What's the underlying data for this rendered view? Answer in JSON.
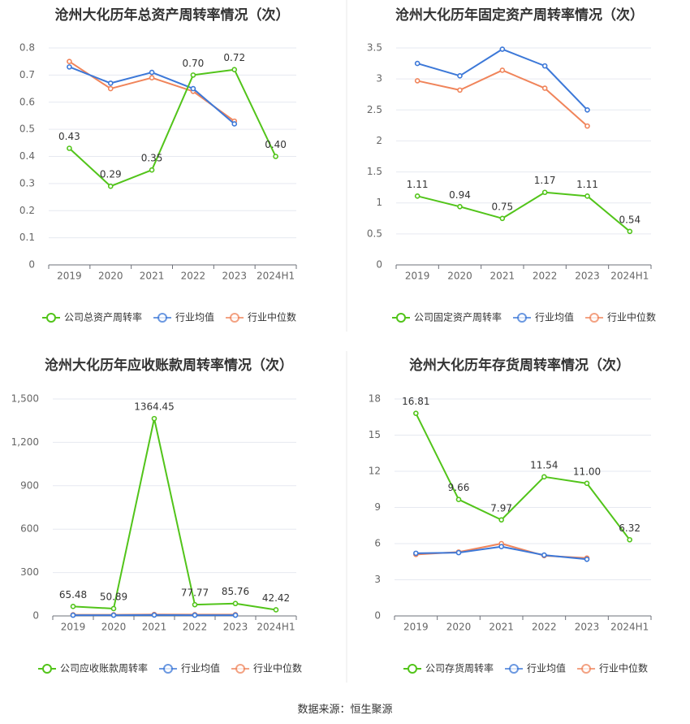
{
  "source_text": "数据来源：恒生聚源",
  "colors": {
    "company": "#52c41a",
    "avg": "#3c78d8",
    "median": "#f0845a",
    "grid": "#e6e9f0",
    "axis": "#999999",
    "text": "#333333",
    "divider": "#e8e8e8"
  },
  "chart_data": [
    {
      "type": "line",
      "title": "沧州大化历年总资产周转率情况（次）",
      "categories": [
        "2019",
        "2020",
        "2021",
        "2022",
        "2023",
        "2024H1"
      ],
      "y_ticks": [
        "0",
        "0.1",
        "0.2",
        "0.3",
        "0.4",
        "0.5",
        "0.6",
        "0.7",
        "0.8"
      ],
      "ylim": [
        0,
        0.8
      ],
      "series": [
        {
          "name": "公司总资产周转率",
          "values": [
            0.43,
            0.29,
            0.35,
            0.7,
            0.72,
            0.4
          ],
          "labels": [
            "0.43",
            "0.29",
            "0.35",
            "0.70",
            "0.72",
            "0.40"
          ]
        },
        {
          "name": "行业均值",
          "values": [
            0.73,
            0.67,
            0.71,
            0.65,
            0.52,
            null
          ]
        },
        {
          "name": "行业中位数",
          "values": [
            0.75,
            0.65,
            0.69,
            0.64,
            0.53,
            null
          ]
        }
      ]
    },
    {
      "type": "line",
      "title": "沧州大化历年固定资产周转率情况（次）",
      "categories": [
        "2019",
        "2020",
        "2021",
        "2022",
        "2023",
        "2024H1"
      ],
      "y_ticks": [
        "0",
        "0.5",
        "1",
        "1.5",
        "2",
        "2.5",
        "3",
        "3.5"
      ],
      "ylim": [
        0,
        3.5
      ],
      "series": [
        {
          "name": "公司固定资产周转率",
          "values": [
            1.11,
            0.94,
            0.75,
            1.17,
            1.11,
            0.54
          ],
          "labels": [
            "1.11",
            "0.94",
            "0.75",
            "1.17",
            "1.11",
            "0.54"
          ]
        },
        {
          "name": "行业均值",
          "values": [
            3.25,
            3.05,
            3.48,
            3.21,
            2.5,
            null
          ]
        },
        {
          "name": "行业中位数",
          "values": [
            2.97,
            2.82,
            3.14,
            2.85,
            2.24,
            null
          ]
        }
      ]
    },
    {
      "type": "line",
      "title": "沧州大化历年应收账款周转率情况（次）",
      "categories": [
        "2019",
        "2020",
        "2021",
        "2022",
        "2023",
        "2024H1"
      ],
      "y_ticks": [
        "0",
        "300",
        "600",
        "900",
        "1,200",
        "1,500"
      ],
      "ylim": [
        0,
        1500
      ],
      "series": [
        {
          "name": "公司应收账款周转率",
          "values": [
            65.48,
            50.89,
            1364.45,
            77.77,
            85.76,
            42.42
          ],
          "labels": [
            "65.48",
            "50.89",
            "1364.45",
            "77.77",
            "85.76",
            "42.42"
          ]
        },
        {
          "name": "行业均值",
          "values": [
            5,
            5,
            6,
            5,
            5,
            null
          ]
        },
        {
          "name": "行业中位数",
          "values": [
            8,
            8,
            10,
            9,
            9,
            null
          ]
        }
      ]
    },
    {
      "type": "line",
      "title": "沧州大化历年存货周转率情况（次）",
      "categories": [
        "2019",
        "2020",
        "2021",
        "2022",
        "2023",
        "2024H1"
      ],
      "y_ticks": [
        "0",
        "3",
        "6",
        "9",
        "12",
        "15",
        "18"
      ],
      "ylim": [
        0,
        18
      ],
      "series": [
        {
          "name": "公司存货周转率",
          "values": [
            16.81,
            9.66,
            7.97,
            11.54,
            11.0,
            6.32
          ],
          "labels": [
            "16.81",
            "9.66",
            "7.97",
            "11.54",
            "11.00",
            "6.32"
          ]
        },
        {
          "name": "行业均值",
          "values": [
            5.2,
            5.25,
            5.75,
            5.05,
            4.7,
            null
          ]
        },
        {
          "name": "行业中位数",
          "values": [
            5.1,
            5.3,
            6.0,
            5.0,
            4.8,
            null
          ]
        }
      ]
    }
  ]
}
